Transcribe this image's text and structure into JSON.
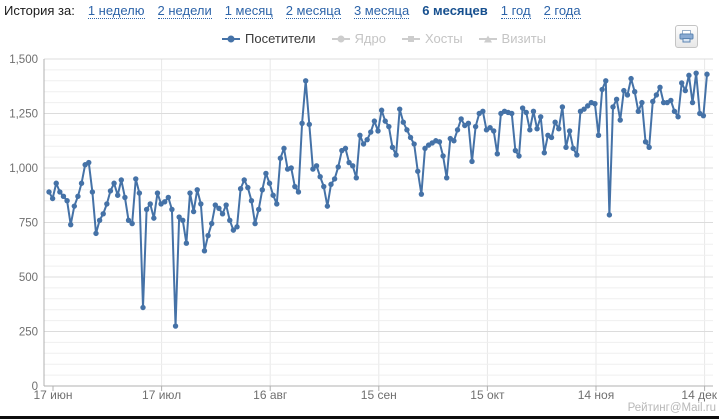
{
  "header": {
    "label": "История за:",
    "periods": [
      {
        "id": "1w",
        "label": "1 неделю",
        "active": false
      },
      {
        "id": "2w",
        "label": "2 недели",
        "active": false
      },
      {
        "id": "1m",
        "label": "1 месяц",
        "active": false
      },
      {
        "id": "2m",
        "label": "2 месяца",
        "active": false
      },
      {
        "id": "3m",
        "label": "3 месяца",
        "active": false
      },
      {
        "id": "6m",
        "label": "6 месяцев",
        "active": true
      },
      {
        "id": "1y",
        "label": "1 год",
        "active": false
      },
      {
        "id": "2y",
        "label": "2 года",
        "active": false
      }
    ]
  },
  "legend": {
    "items": [
      {
        "id": "visitors",
        "label": "Посетители",
        "marker": "circle",
        "active": true,
        "color": "#4572a7"
      },
      {
        "id": "core",
        "label": "Ядро",
        "marker": "circle",
        "active": false,
        "color": "#cdcdcd"
      },
      {
        "id": "hosts",
        "label": "Хосты",
        "marker": "square",
        "active": false,
        "color": "#cdcdcd"
      },
      {
        "id": "visits",
        "label": "Визиты",
        "marker": "triangle",
        "active": false,
        "color": "#cdcdcd"
      }
    ]
  },
  "icons": {
    "print": "printer-icon"
  },
  "footer": {
    "branding": "Рейтинг@Mail.ru"
  },
  "colors": {
    "accent_blue": "#4572a7",
    "link_blue": "#2d64a9",
    "active_period_blue": "#17508f",
    "axis_gray": "#b0b0b0",
    "grid_minor": "#efefef",
    "grid_major": "#dcdcdc",
    "grid_vertical": "#e8e8e8",
    "tick_label_gray": "#6f6f6f",
    "branding_gray": "#b8b8b8"
  },
  "chart_data": {
    "type": "line",
    "title": "",
    "xlabel": "",
    "ylabel": "",
    "ylim": [
      0,
      1500
    ],
    "y_major_step": 250,
    "y_minor_step": 50,
    "y_tick_labels": [
      "0",
      "250",
      "500",
      "750",
      "1,000",
      "1,250",
      "1,500"
    ],
    "x_tick_labels": [
      "17 июн",
      "17 июл",
      "16 авг",
      "15 сен",
      "15 окт",
      "14 ноя",
      "14 дек"
    ],
    "grid": true,
    "legend_position": "top",
    "series": [
      {
        "name": "Посетители",
        "color": "#4572a7",
        "visible": true,
        "values": [
          890,
          860,
          930,
          890,
          870,
          850,
          740,
          825,
          870,
          930,
          1015,
          1025,
          890,
          700,
          760,
          790,
          835,
          895,
          930,
          875,
          945,
          865,
          760,
          745,
          950,
          885,
          360,
          810,
          835,
          770,
          885,
          835,
          845,
          865,
          810,
          275,
          775,
          760,
          655,
          885,
          800,
          900,
          835,
          620,
          690,
          745,
          830,
          815,
          790,
          830,
          760,
          715,
          730,
          905,
          945,
          910,
          850,
          745,
          810,
          900,
          975,
          930,
          875,
          835,
          1045,
          1090,
          995,
          1000,
          915,
          890,
          1205,
          1400,
          1200,
          995,
          1010,
          960,
          915,
          825,
          925,
          950,
          1005,
          1080,
          1090,
          1025,
          1010,
          955,
          1150,
          1110,
          1130,
          1165,
          1215,
          1170,
          1265,
          1215,
          1190,
          1095,
          1060,
          1270,
          1210,
          1175,
          1140,
          1110,
          985,
          880,
          1090,
          1105,
          1115,
          1125,
          1120,
          1055,
          955,
          1135,
          1125,
          1175,
          1225,
          1195,
          1205,
          1030,
          1190,
          1250,
          1260,
          1175,
          1185,
          1170,
          1065,
          1250,
          1260,
          1255,
          1250,
          1080,
          1055,
          1275,
          1255,
          1175,
          1260,
          1180,
          1235,
          1070,
          1150,
          1140,
          1210,
          1180,
          1280,
          1095,
          1170,
          1090,
          1060,
          1260,
          1270,
          1285,
          1300,
          1295,
          1150,
          1360,
          1400,
          785,
          1280,
          1315,
          1220,
          1355,
          1335,
          1410,
          1350,
          1260,
          1300,
          1120,
          1095,
          1305,
          1335,
          1370,
          1300,
          1300,
          1310,
          1260,
          1235,
          1390,
          1355,
          1425,
          1300,
          1435,
          1250,
          1240,
          1430
        ]
      }
    ],
    "inactive_series_names": [
      "Ядро",
      "Хосты",
      "Визиты"
    ]
  }
}
